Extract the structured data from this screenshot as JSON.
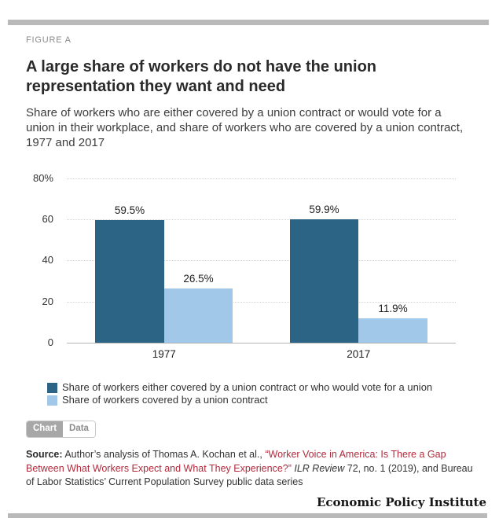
{
  "header": {
    "figure_label": "FIGURE A",
    "title": "A large share of workers do not have the union representation they want and need",
    "subtitle": "Share of workers who are either covered by a union contract or would vote for a union in their workplace, and share of workers who are covered by a union contract, 1977 and 2017"
  },
  "chart_data": {
    "type": "bar",
    "categories": [
      "1977",
      "2017"
    ],
    "series": [
      {
        "name": "Share of workers either covered by a union contract or who would vote for a union",
        "color": "#2b6484",
        "values": [
          59.5,
          59.9
        ],
        "labels": [
          "59.5%",
          "59.9%"
        ]
      },
      {
        "name": "Share of workers covered by a union contract",
        "color": "#a1c8e9",
        "values": [
          26.5,
          11.9
        ],
        "labels": [
          "26.5%",
          "11.9%"
        ]
      }
    ],
    "ylim": [
      0,
      80
    ],
    "yticks": {
      "values": [
        0,
        20,
        40,
        60,
        80
      ],
      "labels": [
        "0",
        "20",
        "40",
        "60",
        "80%"
      ]
    },
    "grid": "horizontal-dotted",
    "legend_position": "bottom-left"
  },
  "tabs": {
    "chart_label": "Chart",
    "data_label": "Data"
  },
  "source": {
    "label": "Source:",
    "text_1": " Author’s analysis of Thomas A. Kochan et al., ",
    "link_text": "“Worker Voice in America: Is There a Gap Between What Workers Expect and What They Experience?”",
    "journal": " ILR Review ",
    "text_2": "72, no. 1 (2019), and Bureau of Labor Statistics’ Current Population Survey public data series",
    "link_color": "#b12a3c"
  },
  "footer": {
    "brand": "Economic Policy Institute"
  }
}
